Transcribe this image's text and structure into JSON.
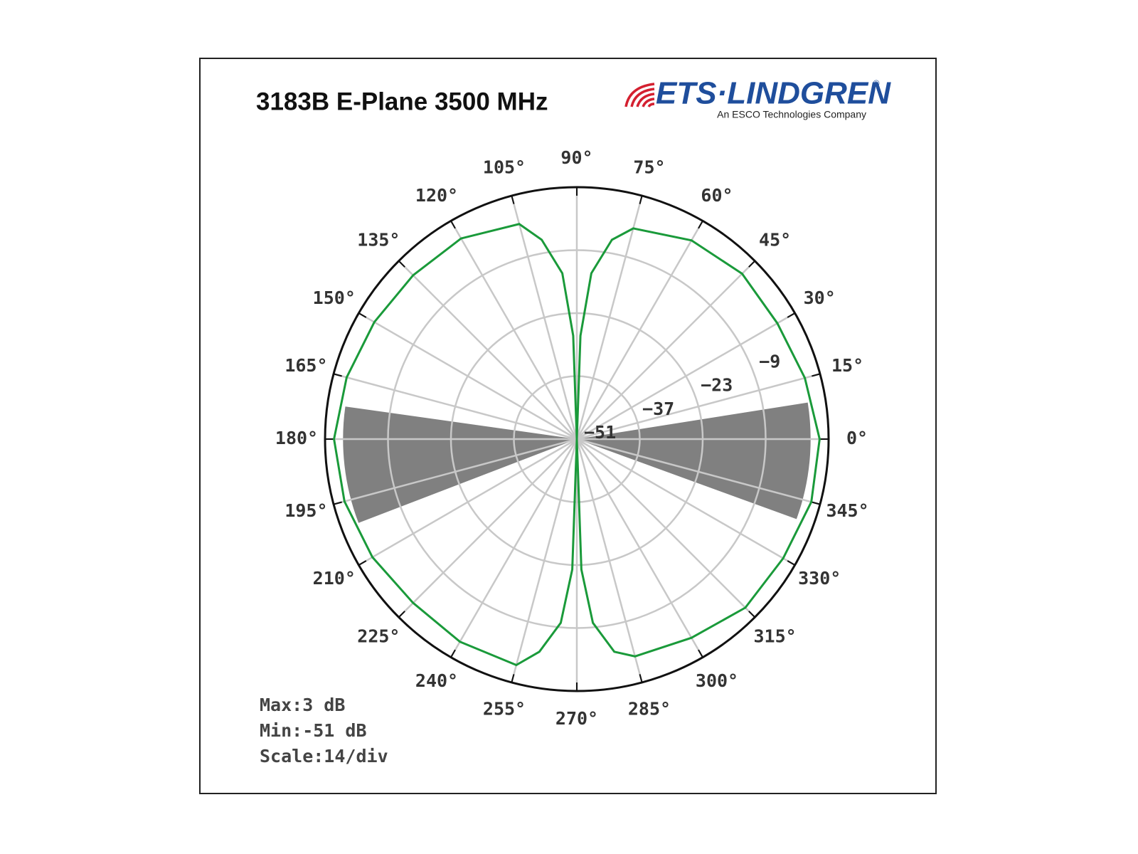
{
  "chart_data": {
    "type": "polar",
    "title": "3183B E-Plane 3500 MHz",
    "logo": {
      "brand": "ETS·LINDGREN",
      "mark": "®",
      "tagline": "An ESCO Technologies Company"
    },
    "theta": [
      0,
      15,
      30,
      45,
      60,
      75,
      80,
      85,
      88,
      90,
      92,
      95,
      100,
      105,
      120,
      135,
      150,
      165,
      180,
      195,
      210,
      225,
      240,
      255,
      260,
      265,
      268,
      270,
      272,
      275,
      280,
      285,
      300,
      315,
      330,
      345
    ],
    "values": [
      3,
      1.5,
      0.5,
      1,
      0,
      -2.5,
      -6,
      -14,
      -28,
      -51,
      -28,
      -14,
      -6,
      -1.5,
      0.5,
      0.5,
      1,
      2,
      3,
      2.5,
      1.5,
      0.5,
      1,
      1,
      -3,
      -10,
      -22,
      -51,
      -22,
      -10,
      -3,
      -1,
      0,
      2,
      2,
      3
    ],
    "color": "#1a9a3a",
    "rlim": [
      -51,
      5
    ],
    "rticks": [
      {
        "value": -51,
        "label": "−51"
      },
      {
        "value": -37,
        "label": "−37"
      },
      {
        "value": -23,
        "label": "−23"
      },
      {
        "value": -9,
        "label": "−9"
      }
    ],
    "thetaticks": [
      {
        "value": 0,
        "label": "0°"
      },
      {
        "value": 15,
        "label": "15°"
      },
      {
        "value": 30,
        "label": "30°"
      },
      {
        "value": 45,
        "label": "45°"
      },
      {
        "value": 60,
        "label": "60°"
      },
      {
        "value": 75,
        "label": "75°"
      },
      {
        "value": 90,
        "label": "90°"
      },
      {
        "value": 105,
        "label": "105°"
      },
      {
        "value": 120,
        "label": "120°"
      },
      {
        "value": 135,
        "label": "135°"
      },
      {
        "value": 150,
        "label": "150°"
      },
      {
        "value": 165,
        "label": "165°"
      },
      {
        "value": 180,
        "label": "180°"
      },
      {
        "value": 195,
        "label": "195°"
      },
      {
        "value": 210,
        "label": "210°"
      },
      {
        "value": 225,
        "label": "225°"
      },
      {
        "value": 240,
        "label": "240°"
      },
      {
        "value": 255,
        "label": "255°"
      },
      {
        "value": 270,
        "label": "270°"
      },
      {
        "value": 285,
        "label": "285°"
      },
      {
        "value": 300,
        "label": "300°"
      },
      {
        "value": 315,
        "label": "315°"
      },
      {
        "value": 330,
        "label": "330°"
      },
      {
        "value": 345,
        "label": "345°"
      }
    ],
    "shaded_sectors": [
      {
        "theta": [
          -20,
          9
        ],
        "r": 1
      },
      {
        "theta": [
          172,
          201
        ],
        "r": 1
      }
    ],
    "shade_color": "#808080",
    "grid": true,
    "annotations": [
      "Max:3 dB",
      "Min:-51 dB",
      "Scale:14/div"
    ]
  }
}
